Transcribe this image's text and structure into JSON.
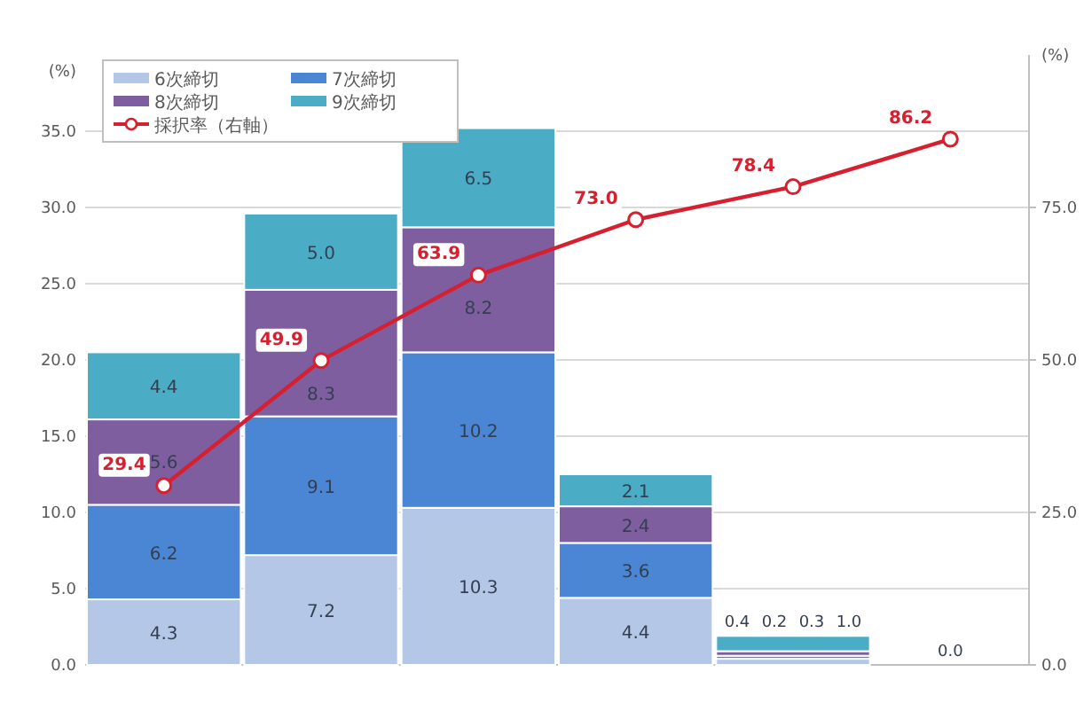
{
  "chart_data": {
    "type": "bar",
    "stacked": true,
    "grid": "y",
    "legend": "top left",
    "marker": "circle",
    "ylabel": "(%)",
    "y2label": "(%)",
    "categories": [
      null,
      null,
      null,
      null,
      null,
      null
    ],
    "ylim": [
      0,
      40
    ],
    "yticks": [
      {
        "value": 0,
        "label": "0.0"
      },
      {
        "value": 5,
        "label": "5.0"
      },
      {
        "value": 10,
        "label": "10.0"
      },
      {
        "value": 15,
        "label": "15.0"
      },
      {
        "value": 20,
        "label": "20.0"
      },
      {
        "value": 25,
        "label": "25.0"
      },
      {
        "value": 30,
        "label": "30.0"
      },
      {
        "value": 35,
        "label": "35.0"
      }
    ],
    "y2lim": [
      0,
      100
    ],
    "y2ticks": [
      {
        "value": 0,
        "label": "0.0"
      },
      {
        "value": 25,
        "label": "25.0"
      },
      {
        "value": 50,
        "label": "50.0"
      },
      {
        "value": 75,
        "label": "75.0"
      }
    ],
    "series": [
      {
        "name": "6次締切",
        "type": "bar",
        "color": "#b4c7e7",
        "values": [
          4.3,
          7.2,
          10.3,
          4.4,
          0.4,
          0.0
        ],
        "value_labels": [
          "4.3",
          "7.2",
          "10.3",
          "4.4",
          "0.4",
          "0.0"
        ]
      },
      {
        "name": "7次締切",
        "type": "bar",
        "color": "#4a86d4",
        "values": [
          6.2,
          9.1,
          10.2,
          3.6,
          0.2,
          0.0
        ],
        "value_labels": [
          "6.2",
          "9.1",
          "10.2",
          "3.6",
          "0.2",
          null
        ]
      },
      {
        "name": "8次締切",
        "type": "bar",
        "color": "#7f5ea0",
        "values": [
          5.6,
          8.3,
          8.2,
          2.4,
          0.3,
          0.0
        ],
        "value_labels": [
          "5.6",
          "8.3",
          "8.2",
          "2.4",
          "0.3",
          null
        ]
      },
      {
        "name": "9次締切",
        "type": "bar",
        "color": "#4bacc6",
        "values": [
          4.4,
          5.0,
          6.5,
          2.1,
          1.0,
          0.0
        ],
        "value_labels": [
          "4.4",
          "5.0",
          "6.5",
          "2.1",
          "1.0",
          null
        ]
      },
      {
        "name": "採択率（右軸）",
        "type": "line",
        "axis": "y2",
        "color": "#d62030",
        "values": [
          29.4,
          49.9,
          63.9,
          73.0,
          78.4,
          86.2
        ],
        "value_labels": [
          "29.4",
          "49.9",
          "63.9",
          "73.0",
          "78.4",
          "86.2"
        ]
      }
    ]
  }
}
